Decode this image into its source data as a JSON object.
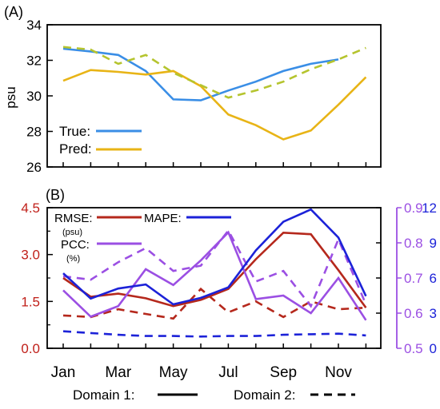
{
  "chart_data": [
    {
      "type": "line",
      "panel_label": "(A)",
      "ylabel": "psu",
      "ylim": [
        26,
        34
      ],
      "yticks": [
        "26",
        "28",
        "30",
        "32",
        "34"
      ],
      "x": [
        1,
        2,
        3,
        4,
        5,
        6,
        7,
        8,
        9,
        10,
        11,
        12
      ],
      "legend_placement": "bottom-left",
      "legend": [
        "True:",
        "Pred:"
      ],
      "colors": {
        "true": "#3a8ee6",
        "pred": "#e8b416",
        "pred_domain2": "#b5c42e"
      },
      "series": [
        {
          "name": "True:",
          "domain": 1,
          "values": [
            32.65,
            32.5,
            32.3,
            31.4,
            29.8,
            29.75,
            30.3,
            30.8,
            31.4,
            31.8,
            32.05,
            null
          ]
        },
        {
          "name": "Pred:",
          "domain": 1,
          "values": [
            30.85,
            31.45,
            31.35,
            31.2,
            31.4,
            30.55,
            28.95,
            28.35,
            27.55,
            28.05,
            29.5,
            31.05
          ]
        },
        {
          "name": "Pred:",
          "domain": 2,
          "values": [
            32.75,
            32.6,
            31.8,
            32.3,
            31.3,
            30.6,
            29.9,
            30.3,
            30.8,
            31.5,
            32.05,
            32.7
          ]
        }
      ]
    },
    {
      "type": "line",
      "panel_label": "(B)",
      "categories": [
        "Jan",
        "Mar",
        "May",
        "Jul",
        "Sep",
        "Nov"
      ],
      "x": [
        1,
        2,
        3,
        4,
        5,
        6,
        7,
        8,
        9,
        10,
        11,
        12
      ],
      "axes": {
        "left": {
          "ylim": [
            0,
            4.5
          ],
          "ticks": [
            "0.0",
            "1.5",
            "3.0",
            "4.5"
          ],
          "color": "#c0201a"
        },
        "right1": {
          "ylim": [
            0.5,
            0.9
          ],
          "ticks": [
            "0.5",
            "0.6",
            "0.7",
            "0.8",
            "0.9"
          ],
          "color": "#9b4fe3"
        },
        "right2": {
          "ylim": [
            0,
            12
          ],
          "ticks": [
            "0",
            "3",
            "6",
            "9",
            "12"
          ],
          "color": "#1c22d8"
        }
      },
      "legend_placement": "top-left",
      "legend": {
        "rmse": "RMSE:",
        "rmse_unit": "(psu)",
        "pcc": "PCC:",
        "pcc_unit": "(%)",
        "mape": "MAPE:"
      },
      "bottom_legend": {
        "domain1": "Domain 1:",
        "domain2": "Domain 2:"
      },
      "colors": {
        "rmse": "#b5281c",
        "pcc": "#9b4fe3",
        "mape": "#1c22d8"
      },
      "series": [
        {
          "name": "RMSE:",
          "axis": "left",
          "domain": 1,
          "values": [
            2.25,
            1.65,
            1.75,
            1.6,
            1.35,
            1.55,
            1.9,
            2.85,
            3.7,
            3.65,
            2.5,
            1.3
          ]
        },
        {
          "name": "RMSE:",
          "axis": "left",
          "domain": 2,
          "values": [
            1.05,
            1.0,
            1.25,
            1.1,
            0.95,
            1.9,
            1.15,
            1.5,
            1.0,
            1.5,
            1.25,
            1.3
          ]
        },
        {
          "name": "PCC:",
          "axis": "right1",
          "domain": 1,
          "values": [
            0.665,
            0.59,
            0.62,
            0.725,
            0.68,
            0.75,
            0.83,
            0.64,
            0.65,
            0.6,
            0.7,
            0.58
          ]
        },
        {
          "name": "PCC:",
          "axis": "right1",
          "domain": 2,
          "values": [
            0.705,
            0.695,
            0.745,
            0.785,
            0.72,
            0.735,
            0.835,
            0.69,
            0.72,
            0.62,
            0.81,
            0.625
          ]
        },
        {
          "name": "MAPE:",
          "axis": "right2",
          "domain": 1,
          "values": [
            6.4,
            4.25,
            5.1,
            5.45,
            3.75,
            4.3,
            5.2,
            8.35,
            10.8,
            11.85,
            9.45,
            4.45
          ]
        },
        {
          "name": "MAPE:",
          "axis": "right2",
          "domain": 2,
          "values": [
            1.45,
            1.3,
            1.15,
            1.05,
            1.05,
            1.0,
            1.05,
            1.05,
            1.15,
            1.2,
            1.25,
            1.1
          ]
        }
      ]
    }
  ]
}
